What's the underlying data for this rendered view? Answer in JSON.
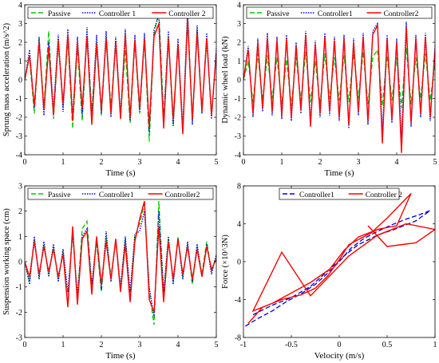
{
  "chart_data": [
    {
      "type": "line",
      "title": "",
      "xlabel": "Time (s)",
      "ylabel": "Sprung mass acceleration (m/s^2)",
      "xlim": [
        0,
        5
      ],
      "ylim": [
        -4,
        4
      ],
      "xticks": [
        "0",
        "1",
        "2",
        "3",
        "4",
        "5"
      ],
      "yticks": [
        "-4",
        "-3",
        "-2",
        "-1",
        "0",
        "1",
        "2",
        "3",
        "4"
      ],
      "legend_position": "top",
      "grid": false,
      "x": [
        0,
        0.125,
        0.25,
        0.375,
        0.5,
        0.625,
        0.75,
        0.875,
        1,
        1.125,
        1.25,
        1.375,
        1.5,
        1.625,
        1.75,
        1.875,
        2,
        2.125,
        2.25,
        2.375,
        2.5,
        2.625,
        2.75,
        2.875,
        3,
        3.125,
        3.25,
        3.375,
        3.5,
        3.625,
        3.75,
        3.875,
        4,
        4.125,
        4.25,
        4.375,
        4.5,
        4.625,
        4.75,
        4.875,
        5
      ],
      "series": [
        {
          "name": "Passive",
          "color": "#00cc00",
          "dash": "dashed",
          "values": [
            0,
            1.2,
            -1.8,
            2.2,
            -1.5,
            2.6,
            -2.1,
            1.9,
            -1.4,
            2.1,
            -2.6,
            1.8,
            -2.2,
            2.4,
            -1.7,
            2.0,
            -1.9,
            2.3,
            -1.5,
            2.1,
            -2.0,
            1.6,
            -2.3,
            2.0,
            -1.8,
            2.2,
            -3.3,
            2.4,
            3.7,
            -2.0,
            2.3,
            -2.4,
            1.9,
            -2.8,
            3.5,
            -2.2,
            2.7,
            -1.6,
            2.1,
            -1.9,
            1.5
          ]
        },
        {
          "name": "Controller 1",
          "color": "#0000cc",
          "dash": "dotted",
          "values": [
            0,
            1.6,
            -1.5,
            2.3,
            -1.9,
            2.0,
            -1.6,
            2.4,
            -1.7,
            2.7,
            -2.0,
            2.3,
            -1.9,
            2.8,
            -2.1,
            2.4,
            -1.8,
            2.6,
            -2.0,
            2.3,
            -1.9,
            2.7,
            -2.2,
            2.4,
            -1.7,
            2.5,
            -2.8,
            2.7,
            3.4,
            -2.3,
            2.6,
            -2.5,
            2.2,
            -2.6,
            3.7,
            -2.4,
            2.9,
            -1.8,
            2.5,
            -2.1,
            1.7
          ]
        },
        {
          "name": "Controller 2",
          "color": "#ff0000",
          "dash": "solid",
          "values": [
            0,
            1.3,
            -1.4,
            2.0,
            -1.6,
            1.7,
            -1.9,
            2.1,
            -1.3,
            2.4,
            -2.2,
            2.0,
            -1.5,
            2.3,
            -2.4,
            1.9,
            -1.6,
            2.2,
            -1.8,
            2.0,
            -2.1,
            2.4,
            -2.0,
            2.1,
            -1.5,
            2.2,
            -2.5,
            2.3,
            3.0,
            -2.6,
            2.2,
            -2.1,
            1.9,
            -2.9,
            3.2,
            -2.1,
            2.5,
            -1.7,
            2.2,
            -1.9,
            1.4
          ]
        }
      ]
    },
    {
      "type": "line",
      "title": "",
      "xlabel": "Time (s)",
      "ylabel": "Dynamic wheel load (kN)",
      "xlim": [
        0,
        5
      ],
      "ylim": [
        -4,
        4
      ],
      "xticks": [
        "0",
        "1",
        "2",
        "3",
        "4",
        "5"
      ],
      "yticks": [
        "-4",
        "-3",
        "-2",
        "-1",
        "0",
        "1",
        "2",
        "3",
        "4"
      ],
      "legend_position": "top",
      "grid": false,
      "x": [
        0,
        0.125,
        0.25,
        0.375,
        0.5,
        0.625,
        0.75,
        0.875,
        1,
        1.125,
        1.25,
        1.375,
        1.5,
        1.625,
        1.75,
        1.875,
        2,
        2.125,
        2.25,
        2.375,
        2.5,
        2.625,
        2.75,
        2.875,
        3,
        3.125,
        3.25,
        3.375,
        3.5,
        3.625,
        3.75,
        3.875,
        4,
        4.125,
        4.25,
        4.375,
        4.5,
        4.625,
        4.75,
        4.875,
        5
      ],
      "series": [
        {
          "name": "Passive",
          "color": "#00cc00",
          "dash": "dashed",
          "values": [
            0,
            1.0,
            -1.2,
            1.4,
            -1.1,
            1.3,
            -1.0,
            1.2,
            -1.3,
            1.1,
            -1.4,
            1.2,
            -1.1,
            1.5,
            -1.2,
            1.0,
            -1.3,
            1.4,
            -1.0,
            1.2,
            -1.1,
            1.3,
            -1.2,
            1.4,
            -1.0,
            1.5,
            -1.3,
            1.2,
            1.6,
            -1.4,
            1.3,
            -1.1,
            1.2,
            -1.5,
            1.7,
            -1.3,
            1.2,
            -1.0,
            1.4,
            -1.1,
            0.9
          ]
        },
        {
          "name": "Controller1",
          "color": "#0000cc",
          "dash": "dotted",
          "values": [
            0,
            1.8,
            -2.0,
            2.2,
            -1.7,
            2.5,
            -1.9,
            2.3,
            -2.1,
            2.4,
            -2.2,
            2.0,
            -1.8,
            2.6,
            -2.3,
            2.1,
            -2.0,
            2.5,
            -1.9,
            2.3,
            -2.2,
            2.4,
            -2.6,
            2.2,
            -1.9,
            2.5,
            -2.4,
            2.6,
            3.0,
            -2.8,
            2.4,
            -2.3,
            2.2,
            -3.1,
            3.1,
            -2.5,
            2.4,
            -2.0,
            2.5,
            -2.2,
            1.8
          ]
        },
        {
          "name": "Controller2",
          "color": "#ff0000",
          "dash": "solid",
          "values": [
            0,
            1.6,
            -1.8,
            2.0,
            -1.5,
            2.2,
            -1.7,
            2.1,
            -1.9,
            2.2,
            -2.0,
            1.8,
            -1.6,
            2.4,
            -2.5,
            1.9,
            -1.8,
            2.3,
            -1.7,
            2.1,
            -2.0,
            2.2,
            -2.4,
            2.0,
            -1.7,
            2.3,
            -2.2,
            2.4,
            2.9,
            -3.4,
            2.2,
            -2.1,
            2.0,
            -3.9,
            2.8,
            -2.3,
            2.2,
            -1.8,
            2.3,
            -2.0,
            1.6
          ]
        }
      ]
    },
    {
      "type": "line",
      "title": "",
      "xlabel": "Time (s)",
      "ylabel": "Suspension working space (cm)",
      "xlim": [
        0,
        5
      ],
      "ylim": [
        -3,
        3
      ],
      "xticks": [
        "0",
        "1",
        "2",
        "3",
        "4",
        "5"
      ],
      "yticks": [
        "-3",
        "-2",
        "-1",
        "0",
        "1",
        "2",
        "3"
      ],
      "legend_position": "top",
      "grid": false,
      "x": [
        0,
        0.125,
        0.25,
        0.375,
        0.5,
        0.625,
        0.75,
        0.875,
        1,
        1.125,
        1.25,
        1.375,
        1.5,
        1.625,
        1.75,
        1.875,
        2,
        2.125,
        2.25,
        2.375,
        2.5,
        2.625,
        2.75,
        2.875,
        3,
        3.125,
        3.25,
        3.375,
        3.5,
        3.625,
        3.75,
        3.875,
        4,
        4.125,
        4.25,
        4.375,
        4.5,
        4.625,
        4.75,
        4.875,
        5
      ],
      "series": [
        {
          "name": "Passive",
          "color": "#00cc00",
          "dash": "dashed",
          "values": [
            0,
            -0.8,
            0.9,
            -0.6,
            0.7,
            -0.5,
            0.6,
            -0.7,
            0.4,
            -1.6,
            1.2,
            -1.5,
            1.3,
            1.6,
            -1.0,
            0.8,
            -1.2,
            1.0,
            -0.6,
            0.8,
            -1.1,
            0.9,
            -1.4,
            1.0,
            1.5,
            2.3,
            -1.2,
            -2.5,
            2.4,
            -1.3,
            0.9,
            -0.8,
            1.0,
            -0.6,
            0.7,
            -0.9,
            0.6,
            -0.5,
            0.8,
            -0.4,
            0.2
          ]
        },
        {
          "name": "Controller1",
          "color": "#0000cc",
          "dash": "dotted",
          "values": [
            0,
            -0.9,
            1.0,
            -0.7,
            0.8,
            -0.6,
            0.7,
            -0.8,
            0.5,
            -1.2,
            1.1,
            -1.3,
            1.0,
            1.3,
            -0.9,
            0.9,
            -1.1,
            1.2,
            -0.8,
            0.9,
            -1.0,
            1.0,
            -1.2,
            1.1,
            1.2,
            2.0,
            -1.0,
            -2.2,
            2.0,
            -1.2,
            1.0,
            -0.9,
            0.9,
            -0.7,
            0.8,
            -0.8,
            0.7,
            -0.6,
            0.7,
            -0.5,
            0.3
          ]
        },
        {
          "name": "Controller2",
          "color": "#ff0000",
          "dash": "solid",
          "values": [
            0,
            -0.6,
            0.8,
            -0.5,
            0.6,
            -0.4,
            0.5,
            -0.6,
            0.3,
            -1.8,
            1.4,
            -1.7,
            0.9,
            1.2,
            -1.3,
            1.0,
            -0.9,
            0.8,
            -0.7,
            0.9,
            -1.2,
            0.7,
            -1.6,
            0.8,
            1.7,
            2.4,
            -1.5,
            -2.0,
            1.4,
            -1.6,
            0.8,
            -0.7,
            0.9,
            -0.5,
            0.6,
            -0.7,
            0.5,
            -0.6,
            0.6,
            -0.3,
            0.1
          ]
        }
      ]
    },
    {
      "type": "line",
      "title": "",
      "xlabel": "Velocity (m/s)",
      "ylabel": "Force (×10^3N)",
      "xlim": [
        -1,
        1
      ],
      "ylim": [
        -8,
        8
      ],
      "xticks": [
        "-1",
        "-0.5",
        "0",
        "0.5",
        "1"
      ],
      "yticks": [
        "-8",
        "-4",
        "0",
        "4",
        "8"
      ],
      "legend_position": "top",
      "grid": false,
      "series": [
        {
          "name": "Controller1",
          "color": "#0000cc",
          "dash": "dashed",
          "x": [
            -0.98,
            -0.85,
            -0.7,
            -0.55,
            -0.4,
            -0.25,
            -0.12,
            0,
            0.12,
            0.25,
            0.4,
            0.55,
            0.7,
            0.85,
            0.95,
            0.8,
            0.6,
            0.4,
            0.2,
            0.05,
            -0.1,
            -0.3,
            -0.5,
            -0.7,
            -0.9
          ],
          "y": [
            -6.8,
            -6.0,
            -5.2,
            -4.2,
            -3.4,
            -2.4,
            -1.2,
            0,
            1.4,
            2.4,
            3.2,
            3.9,
            4.5,
            5.0,
            5.4,
            4.3,
            3.5,
            2.8,
            1.8,
            0.6,
            -0.8,
            -2.6,
            -3.8,
            -4.6,
            -5.6
          ]
        },
        {
          "name": "Controller 2",
          "color": "#ff0000",
          "dash": "solid",
          "x": [
            -0.95,
            -0.8,
            -0.6,
            -0.4,
            -0.25,
            -0.12,
            0,
            0.1,
            0.25,
            0.4,
            0.6,
            0.75,
            0.5,
            0.35,
            0.2,
            0.05,
            -0.1,
            -0.3,
            -0.5,
            -0.7,
            -0.9,
            -0.6,
            -0.3,
            0.1,
            0.4,
            0.7,
            1.0,
            0.8,
            0.5,
            0.3
          ],
          "y": [
            -6.5,
            -4.8,
            -4.0,
            -3.5,
            -2.8,
            -1.5,
            0.2,
            1.8,
            2.6,
            3.4,
            3.8,
            7.2,
            4.6,
            3.2,
            2.6,
            1.2,
            -0.8,
            -2.2,
            -3.3,
            -4.4,
            -5.2,
            1.0,
            -3.6,
            0.6,
            2.8,
            4.0,
            3.4,
            2.0,
            1.6,
            3.8
          ]
        }
      ]
    }
  ]
}
